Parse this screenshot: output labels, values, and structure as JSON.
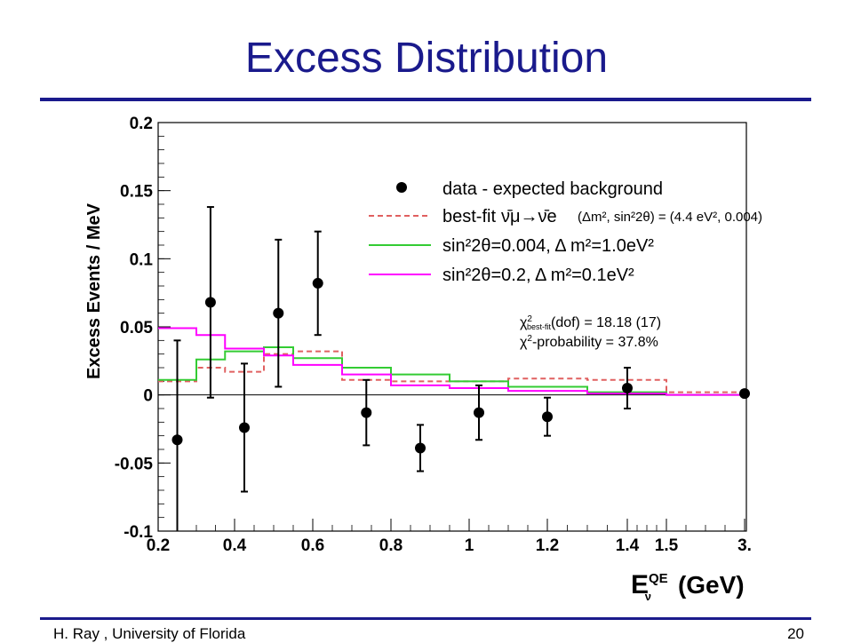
{
  "slide": {
    "title": "Excess Distribution",
    "footer_left": "H. Ray , University of Florida",
    "page_number": "20"
  },
  "chart_data": {
    "type": "scatter",
    "ylabel": "Excess Events / MeV",
    "xlabel": "(GeV)",
    "xlabel_symbol": "E",
    "xlabel_sup": "QE",
    "xlabel_sub": "ν",
    "ylim": [
      -0.1,
      0.2
    ],
    "y_ticks": [
      -0.1,
      -0.05,
      0,
      0.05,
      0.1,
      0.15,
      0.2
    ],
    "y_tick_labels": [
      "-0.1",
      "-0.05",
      "0",
      "0.05",
      "0.1",
      "0.15",
      "0.2"
    ],
    "x_tick_labels": [
      "0.2",
      "0.4",
      "0.6",
      "0.8",
      "1",
      "1.2",
      "1.4",
      "1.5",
      "3."
    ],
    "bin_edges": [
      0.2,
      0.3,
      0.375,
      0.475,
      0.55,
      0.675,
      0.8,
      0.95,
      1.1,
      1.3,
      1.5,
      3.0
    ],
    "data_points": {
      "name": "data - expected background",
      "color": "#000000",
      "x": [
        0.25,
        0.337,
        0.425,
        0.512,
        0.613,
        0.737,
        0.875,
        1.025,
        1.2,
        1.4,
        3.0
      ],
      "y": [
        -0.033,
        0.068,
        -0.024,
        0.06,
        0.082,
        -0.013,
        -0.039,
        -0.013,
        -0.016,
        0.005,
        0.001
      ],
      "err": [
        0.073,
        0.07,
        0.047,
        0.054,
        0.038,
        0.024,
        0.017,
        0.02,
        0.014,
        0.015,
        0.002
      ]
    },
    "series": [
      {
        "name": "best-fit",
        "legend_formula": "ν̄μ→ν̄e",
        "legend_note": "(Δm², sin²2θ) = (4.4 eV², 0.004)",
        "style": "dashed",
        "color": "#e06060",
        "values": [
          0.01,
          0.02,
          0.017,
          0.03,
          0.032,
          0.011,
          0.01,
          0.01,
          0.012,
          0.011,
          0.002
        ]
      },
      {
        "name": "sin²2θ=0.004, Δ m²=1.0eV²",
        "style": "solid",
        "color": "#33cc33",
        "values": [
          0.011,
          0.026,
          0.032,
          0.035,
          0.027,
          0.02,
          0.015,
          0.01,
          0.006,
          0.002,
          0.0
        ]
      },
      {
        "name": "sin²2θ=0.2, Δ m²=0.1eV²",
        "style": "solid",
        "color": "#ff00ff",
        "values": [
          0.049,
          0.044,
          0.034,
          0.029,
          0.022,
          0.015,
          0.007,
          0.005,
          0.003,
          0.001,
          0.0
        ]
      }
    ],
    "annotations": {
      "chi2_line": [
        "χ",
        "2",
        "best-fit",
        "(dof) = 18.18 (17)"
      ],
      "prob_line": [
        "χ",
        "2",
        "-probability = 37.8%"
      ]
    },
    "legend_placement": "top-right",
    "grid": false
  }
}
